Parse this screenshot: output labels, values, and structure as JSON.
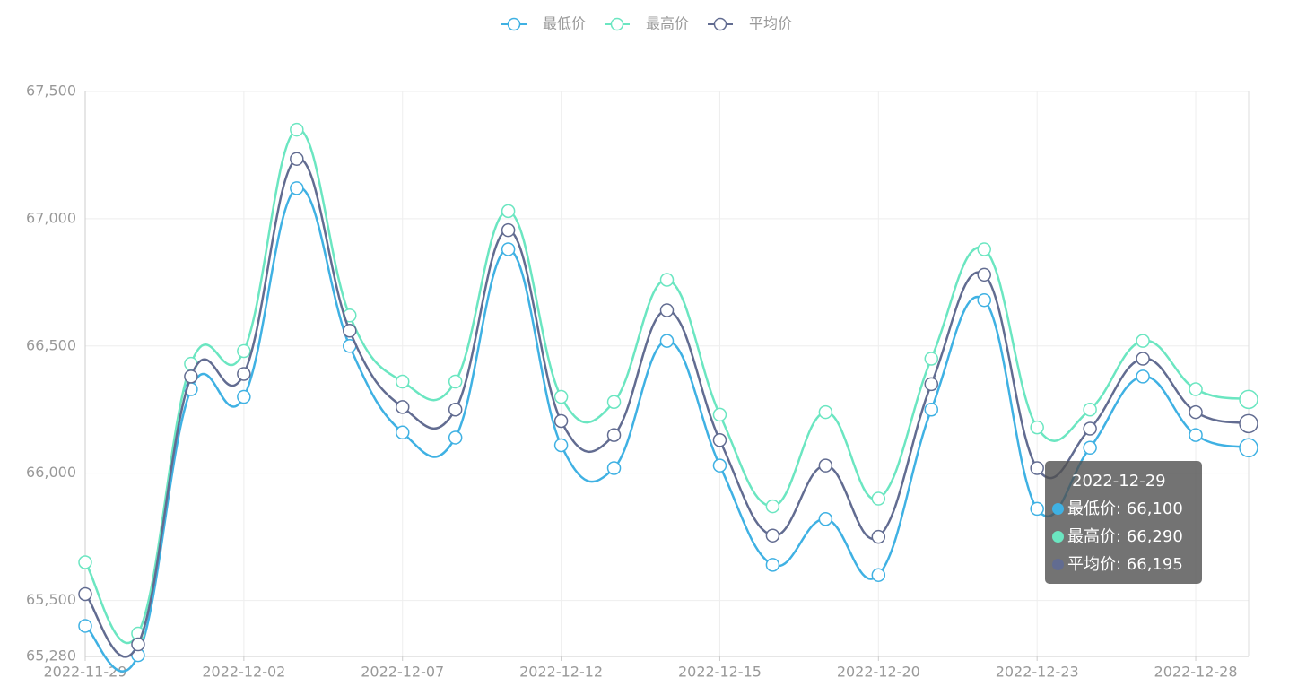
{
  "chart_data": {
    "type": "line",
    "smooth": true,
    "grid": true,
    "categories": [
      "2022-11-29",
      null,
      null,
      "2022-12-02",
      null,
      null,
      "2022-12-07",
      null,
      null,
      "2022-12-12",
      null,
      null,
      "2022-12-15",
      null,
      null,
      "2022-12-20",
      null,
      null,
      "2022-12-23",
      null,
      null,
      "2022-12-28",
      "2022-12-29"
    ],
    "series": [
      {
        "name": "最低价",
        "color": "#3fb1e3",
        "values": [
          65400,
          65285,
          66330,
          66300,
          67120,
          66500,
          66160,
          66140,
          66880,
          66110,
          66020,
          66520,
          66030,
          65640,
          65820,
          65600,
          66250,
          66680,
          65860,
          66100,
          66380,
          66150,
          66100
        ],
        "value_labels": [
          null,
          null,
          null,
          null,
          null,
          null,
          null,
          null,
          null,
          null,
          null,
          null,
          null,
          null,
          null,
          null,
          null,
          null,
          null,
          null,
          null,
          null,
          "66,100"
        ]
      },
      {
        "name": "最高价",
        "color": "#6be6c1",
        "values": [
          65650,
          65370,
          66430,
          66480,
          67350,
          66620,
          66360,
          66360,
          67030,
          66300,
          66280,
          66760,
          66230,
          65870,
          66240,
          65900,
          66450,
          66880,
          66180,
          66250,
          66520,
          66330,
          66290
        ],
        "value_labels": [
          null,
          null,
          null,
          null,
          null,
          null,
          null,
          null,
          null,
          null,
          null,
          null,
          null,
          null,
          null,
          null,
          null,
          null,
          null,
          null,
          null,
          null,
          "66,290"
        ]
      },
      {
        "name": "平均价",
        "color": "#626c91",
        "values": [
          65525,
          65327.5,
          66380,
          66390,
          67235,
          66560,
          66260,
          66250,
          66955,
          66205,
          66150,
          66640,
          66130,
          65755,
          66030,
          65750,
          66350,
          66780,
          66020,
          66175,
          66450,
          66240,
          66195
        ],
        "value_labels": [
          null,
          null,
          null,
          null,
          null,
          null,
          null,
          null,
          null,
          null,
          null,
          null,
          null,
          null,
          null,
          null,
          null,
          null,
          null,
          null,
          null,
          null,
          "66,195"
        ]
      }
    ],
    "ylim": [
      65280,
      67500
    ],
    "yticks": [
      {
        "value": 65280,
        "label": "65,280"
      },
      {
        "value": 65500,
        "label": "65,500"
      },
      {
        "value": 66000,
        "label": "66,000"
      },
      {
        "value": 66500,
        "label": "66,500"
      },
      {
        "value": 67000,
        "label": "67,000"
      },
      {
        "value": 67500,
        "label": "67,500"
      }
    ]
  }
}
